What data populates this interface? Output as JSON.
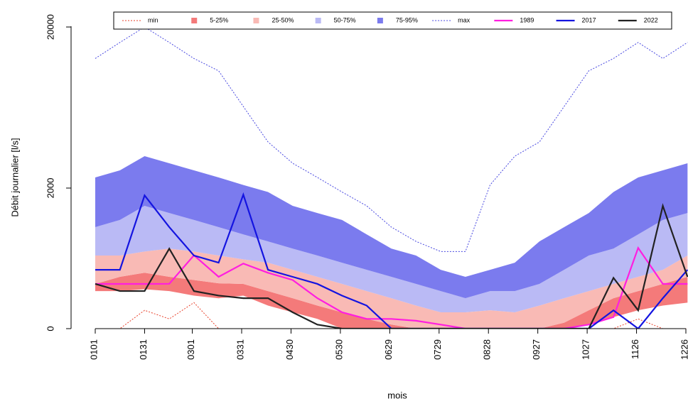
{
  "chart_data": {
    "type": "line",
    "xlabel": "mois",
    "ylabel": "Débit journalier [l/s]",
    "x": [
      1,
      16,
      31,
      46,
      61,
      76,
      91,
      106,
      121,
      136,
      151,
      166,
      181,
      196,
      211,
      226,
      241,
      256,
      271,
      286,
      301,
      316,
      331,
      346,
      361
    ],
    "xlim": [
      1,
      360
    ],
    "xticks": [
      {
        "value": 1,
        "label": "0101"
      },
      {
        "value": 31,
        "label": "0131"
      },
      {
        "value": 60,
        "label": "0301"
      },
      {
        "value": 90,
        "label": "0331"
      },
      {
        "value": 120,
        "label": "0430"
      },
      {
        "value": 150,
        "label": "0530"
      },
      {
        "value": 180,
        "label": "0629"
      },
      {
        "value": 210,
        "label": "0729"
      },
      {
        "value": 240,
        "label": "0828"
      },
      {
        "value": 270,
        "label": "0927"
      },
      {
        "value": 300,
        "label": "1027"
      },
      {
        "value": 330,
        "label": "1126"
      },
      {
        "value": 360,
        "label": "1226"
      }
    ],
    "ylim": [
      0,
      24500
    ],
    "yticks": [
      0,
      2000,
      20000
    ],
    "yscale": "log",
    "legend": "top",
    "series": [
      {
        "name": "min",
        "kind": "line",
        "dash": true,
        "color": "#e8402a",
        "values": [
          0,
          0,
          100,
          50,
          150,
          0,
          0,
          0,
          0,
          0,
          0,
          0,
          0,
          0,
          0,
          0,
          0,
          0,
          0,
          0,
          0,
          0,
          50,
          0,
          0
        ]
      },
      {
        "name": "5-25%",
        "kind": "band",
        "color": "#f47a7a",
        "lower": [
          235,
          235,
          250,
          235,
          200,
          180,
          200,
          130,
          88,
          50,
          0,
          0,
          0,
          0,
          0,
          0,
          0,
          0,
          0,
          0,
          20,
          60,
          100,
          130,
          150
        ],
        "upper": [
          295,
          360,
          400,
          360,
          330,
          300,
          295,
          235,
          181,
          130,
          88,
          50,
          20,
          0,
          0,
          0,
          0,
          0,
          0,
          30,
          100,
          181,
          235,
          295,
          360
        ]
      },
      {
        "name": "25-50%",
        "kind": "band",
        "color": "#f9bab5",
        "lower": [
          295,
          360,
          400,
          360,
          330,
          300,
          295,
          235,
          181,
          130,
          88,
          50,
          20,
          0,
          0,
          0,
          0,
          0,
          0,
          30,
          100,
          181,
          235,
          295,
          360
        ],
        "upper": [
          597,
          597,
          650,
          690,
          650,
          597,
          550,
          510,
          431,
          360,
          295,
          235,
          181,
          130,
          88,
          88,
          100,
          88,
          130,
          181,
          235,
          295,
          360,
          431,
          597
        ]
      },
      {
        "name": "50-75%",
        "kind": "band",
        "color": "#babaf5",
        "lower": [
          597,
          597,
          650,
          690,
          650,
          597,
          550,
          510,
          431,
          360,
          295,
          235,
          181,
          130,
          88,
          88,
          100,
          88,
          130,
          181,
          235,
          295,
          360,
          431,
          597
        ],
        "upper": [
          1040,
          1180,
          1500,
          1331,
          1180,
          1040,
          910,
          796,
          690,
          597,
          510,
          431,
          360,
          295,
          235,
          181,
          235,
          235,
          295,
          431,
          597,
          690,
          910,
          1180,
          1331
        ]
      },
      {
        "name": "75-95%",
        "kind": "band",
        "color": "#7b7bee",
        "lower": [
          1040,
          1180,
          1500,
          1331,
          1180,
          1040,
          910,
          796,
          690,
          597,
          510,
          431,
          360,
          295,
          235,
          181,
          235,
          235,
          295,
          431,
          597,
          690,
          910,
          1180,
          1331
        ],
        "upper": [
          2362,
          2630,
          3256,
          2930,
          2630,
          2362,
          2100,
          1880,
          1500,
          1331,
          1180,
          910,
          690,
          597,
          431,
          360,
          431,
          510,
          796,
          1040,
          1331,
          1880,
          2362,
          2630,
          2930
        ]
      },
      {
        "name": "max",
        "kind": "line",
        "dash": true,
        "color": "#4747e0",
        "values": [
          13000,
          16200,
          20000,
          16200,
          13000,
          10965,
          6671,
          4015,
          2930,
          2362,
          1880,
          1500,
          1040,
          796,
          650,
          650,
          2100,
          3256,
          4015,
          6671,
          10965,
          13000,
          16200,
          13000,
          16200
        ]
      },
      {
        "name": "1989",
        "kind": "line",
        "color": "#ff1ee0",
        "values": [
          295,
          295,
          295,
          296,
          600,
          360,
          500,
          400,
          330,
          181,
          88,
          50,
          50,
          40,
          20,
          0,
          0,
          0,
          0,
          0,
          20,
          60,
          700,
          295,
          295
        ]
      },
      {
        "name": "2017",
        "kind": "line",
        "color": "#1414e0",
        "values": [
          431,
          431,
          1780,
          1040,
          597,
          510,
          1800,
          431,
          360,
          295,
          200,
          130,
          0,
          0,
          0,
          0,
          0,
          0,
          0,
          0,
          0,
          100,
          0,
          181,
          431
        ]
      },
      {
        "name": "2022",
        "kind": "line",
        "color": "#222222",
        "values": [
          295,
          235,
          235,
          690,
          235,
          200,
          181,
          181,
          88,
          20,
          0,
          0,
          0,
          0,
          0,
          0,
          0,
          0,
          0,
          0,
          0,
          350,
          100,
          1500,
          360
        ]
      }
    ]
  }
}
